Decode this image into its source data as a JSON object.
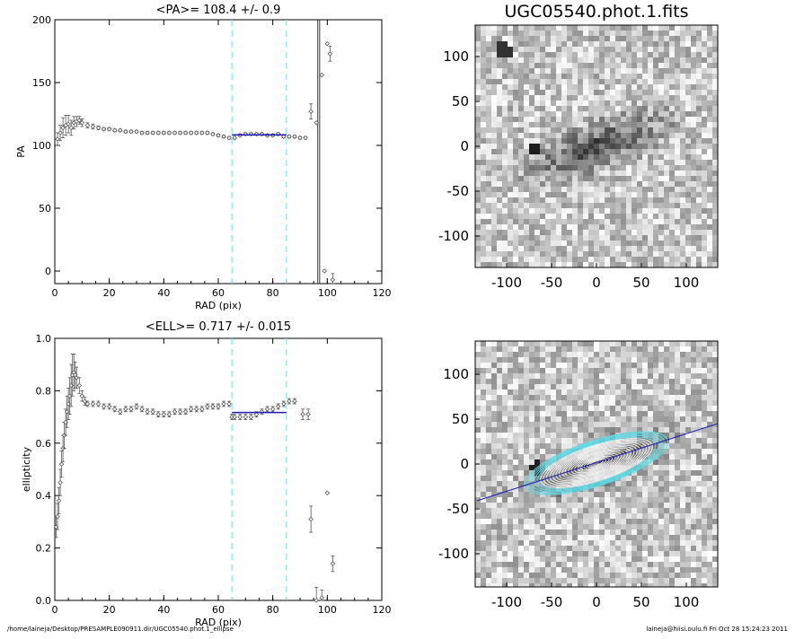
{
  "colors": {
    "axis": "#000000",
    "points": "#555555",
    "fit": "#1c1cb4",
    "dashed": "#7fe6ee",
    "ellipse_white": "#f4f4f4",
    "ellipse_cyan": "#5fdce8"
  },
  "footer": {
    "left": "/home/laineja/Desktop/PRESAMPLE090911.dir/UGC05540.phot.1_ellipse",
    "right": "laineja@hiisi.oulu.fi  Fri Oct 28 15:24:23 2011"
  },
  "image_panels": {
    "title": "UGC05540.phot.1.fits",
    "x_ticks": [
      "-100",
      "-50",
      "0",
      "50",
      "100"
    ],
    "y_ticks": [
      "100",
      "50",
      "0",
      "-50",
      "-100"
    ]
  },
  "chart_data": [
    {
      "type": "scatter",
      "title": "<PA>= 108.4 +/-   0.9",
      "xlabel": "RAD (pix)",
      "ylabel": "PA",
      "xlim": [
        0,
        120
      ],
      "ylim": [
        -10,
        200
      ],
      "x_ticks": [
        "0",
        "20",
        "40",
        "60",
        "80",
        "100",
        "120"
      ],
      "y_ticks": [
        "0",
        "50",
        "100",
        "150",
        "200"
      ],
      "fit_range": [
        65,
        85
      ],
      "fit_value": 108.4,
      "vertical_lines": [
        96.5,
        97.2
      ],
      "points": [
        [
          1,
          105,
          5
        ],
        [
          2,
          110,
          6
        ],
        [
          3,
          114,
          8
        ],
        [
          4,
          116,
          8
        ],
        [
          5,
          117,
          7
        ],
        [
          6,
          114,
          6
        ],
        [
          7,
          118,
          5
        ],
        [
          8,
          119,
          4
        ],
        [
          9,
          120,
          3
        ],
        [
          10,
          118,
          3
        ],
        [
          12,
          116,
          2
        ],
        [
          14,
          115,
          2
        ],
        [
          16,
          114,
          1.5
        ],
        [
          18,
          113,
          1
        ],
        [
          20,
          113,
          1
        ],
        [
          22,
          112,
          1
        ],
        [
          24,
          112,
          1
        ],
        [
          26,
          111,
          1
        ],
        [
          28,
          111,
          1
        ],
        [
          30,
          111,
          1
        ],
        [
          32,
          110,
          1
        ],
        [
          34,
          110,
          1
        ],
        [
          36,
          110,
          1
        ],
        [
          38,
          110,
          1
        ],
        [
          40,
          110,
          1
        ],
        [
          42,
          110,
          1
        ],
        [
          44,
          110,
          1
        ],
        [
          46,
          110,
          1
        ],
        [
          48,
          110,
          1
        ],
        [
          50,
          110,
          1
        ],
        [
          52,
          110,
          1
        ],
        [
          54,
          110,
          1
        ],
        [
          56,
          110,
          1
        ],
        [
          58,
          109,
          1
        ],
        [
          60,
          108,
          1
        ],
        [
          62,
          107,
          1
        ],
        [
          64,
          106,
          1
        ],
        [
          66,
          106,
          1
        ],
        [
          68,
          108,
          1
        ],
        [
          70,
          109,
          1
        ],
        [
          72,
          109,
          1
        ],
        [
          74,
          109,
          1
        ],
        [
          76,
          109,
          1
        ],
        [
          78,
          108,
          1
        ],
        [
          80,
          108,
          1
        ],
        [
          82,
          109,
          1
        ],
        [
          84,
          107,
          1
        ],
        [
          86,
          107,
          1
        ],
        [
          88,
          107,
          1
        ],
        [
          90,
          106,
          1
        ],
        [
          92,
          106,
          1
        ],
        [
          94,
          127,
          6
        ],
        [
          96,
          118,
          0
        ],
        [
          98,
          156,
          0
        ],
        [
          99,
          0,
          0
        ],
        [
          100,
          181,
          0
        ],
        [
          101,
          173,
          6
        ],
        [
          102,
          -7,
          5
        ]
      ]
    },
    {
      "type": "scatter",
      "title": "<ELL>= 0.717 +/-  0.015",
      "xlabel": "RAD (pix)",
      "ylabel": "ellipticity",
      "xlim": [
        0,
        120
      ],
      "ylim": [
        0,
        1
      ],
      "x_ticks": [
        "0",
        "20",
        "40",
        "60",
        "80",
        "100",
        "120"
      ],
      "y_ticks": [
        "0.0",
        "0.2",
        "0.4",
        "0.6",
        "0.8",
        "1.0"
      ],
      "fit_range": [
        65,
        85
      ],
      "fit_value": 0.717,
      "points": [
        [
          0.5,
          0.28,
          0.04
        ],
        [
          1,
          0.32,
          0.05
        ],
        [
          1.5,
          0.38,
          0.05
        ],
        [
          2,
          0.45,
          0.05
        ],
        [
          2.5,
          0.52,
          0.05
        ],
        [
          3,
          0.58,
          0.05
        ],
        [
          3.5,
          0.63,
          0.05
        ],
        [
          4,
          0.68,
          0.05
        ],
        [
          4.5,
          0.72,
          0.06
        ],
        [
          5,
          0.75,
          0.06
        ],
        [
          5.5,
          0.78,
          0.07
        ],
        [
          6,
          0.82,
          0.08
        ],
        [
          6.5,
          0.86,
          0.08
        ],
        [
          7,
          0.87,
          0.07
        ],
        [
          7.5,
          0.86,
          0.05
        ],
        [
          8,
          0.85,
          0.04
        ],
        [
          9,
          0.82,
          0.03
        ],
        [
          10,
          0.78,
          0.02
        ],
        [
          11,
          0.76,
          0.015
        ],
        [
          12,
          0.75,
          0.01
        ],
        [
          14,
          0.75,
          0.01
        ],
        [
          16,
          0.75,
          0.01
        ],
        [
          18,
          0.74,
          0.01
        ],
        [
          20,
          0.74,
          0.01
        ],
        [
          22,
          0.73,
          0.01
        ],
        [
          24,
          0.72,
          0.01
        ],
        [
          26,
          0.73,
          0.01
        ],
        [
          28,
          0.73,
          0.01
        ],
        [
          30,
          0.74,
          0.01
        ],
        [
          32,
          0.73,
          0.01
        ],
        [
          34,
          0.72,
          0.01
        ],
        [
          36,
          0.72,
          0.01
        ],
        [
          38,
          0.71,
          0.01
        ],
        [
          40,
          0.71,
          0.01
        ],
        [
          42,
          0.71,
          0.01
        ],
        [
          44,
          0.72,
          0.01
        ],
        [
          46,
          0.72,
          0.01
        ],
        [
          48,
          0.72,
          0.01
        ],
        [
          50,
          0.73,
          0.01
        ],
        [
          52,
          0.73,
          0.01
        ],
        [
          54,
          0.73,
          0.01
        ],
        [
          56,
          0.74,
          0.01
        ],
        [
          58,
          0.74,
          0.01
        ],
        [
          60,
          0.74,
          0.01
        ],
        [
          62,
          0.75,
          0.01
        ],
        [
          64,
          0.75,
          0.01
        ],
        [
          65,
          0.7,
          0.01
        ],
        [
          66,
          0.7,
          0.01
        ],
        [
          68,
          0.7,
          0.01
        ],
        [
          70,
          0.7,
          0.01
        ],
        [
          72,
          0.7,
          0.01
        ],
        [
          74,
          0.71,
          0.01
        ],
        [
          76,
          0.72,
          0.01
        ],
        [
          78,
          0.73,
          0.01
        ],
        [
          80,
          0.73,
          0.01
        ],
        [
          82,
          0.74,
          0.01
        ],
        [
          84,
          0.75,
          0.01
        ],
        [
          86,
          0.76,
          0.01
        ],
        [
          88,
          0.76,
          0.01
        ],
        [
          91,
          0.71,
          0.02
        ],
        [
          93,
          0.71,
          0.02
        ],
        [
          94,
          0.31,
          0.05
        ],
        [
          96,
          0.0,
          0.05
        ],
        [
          98,
          0.01,
          0.03
        ],
        [
          100,
          0.41,
          0
        ],
        [
          102,
          0.14,
          0.03
        ]
      ]
    }
  ]
}
